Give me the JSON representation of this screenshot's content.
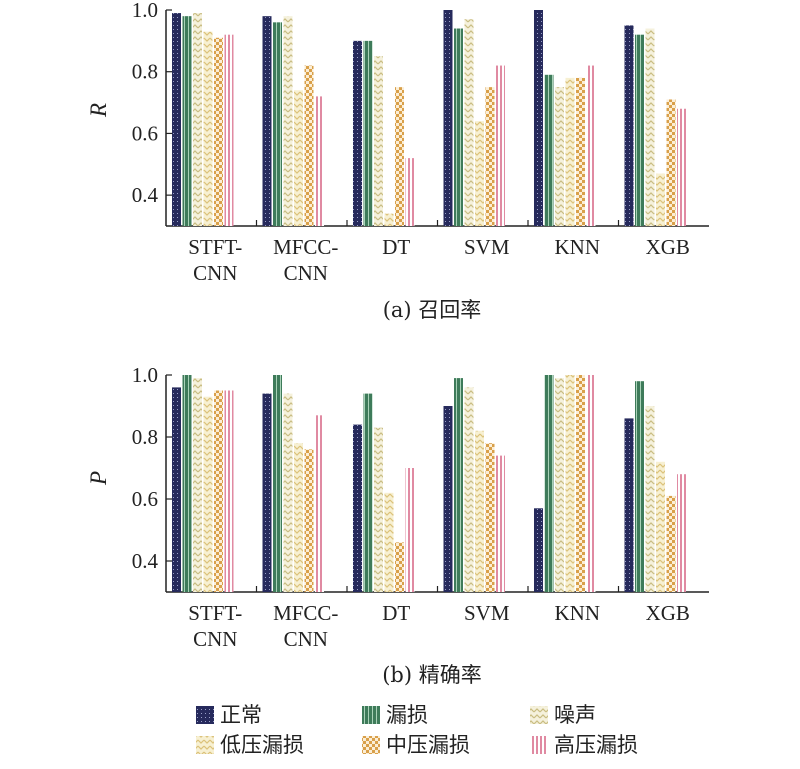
{
  "chart_data": [
    {
      "type": "bar",
      "caption": "(a) 召回率",
      "ylabel": "R",
      "ylim": [
        0.3,
        1.0
      ],
      "yticks": [
        "0.4",
        "0.6",
        "0.8",
        "1.0"
      ],
      "categories": [
        "STFT-CNN",
        "MFCC-CNN",
        "DT",
        "SVM",
        "KNN",
        "XGB"
      ],
      "category_lines": [
        [
          "STFT-",
          "CNN"
        ],
        [
          "MFCC-",
          "CNN"
        ],
        [
          "DT"
        ],
        [
          "SVM"
        ],
        [
          "KNN"
        ],
        [
          "XGB"
        ]
      ],
      "series": [
        {
          "name": "正常",
          "values": [
            0.99,
            0.98,
            0.9,
            1.0,
            1.0,
            0.95
          ]
        },
        {
          "name": "漏损",
          "values": [
            0.98,
            0.96,
            0.9,
            0.94,
            0.79,
            0.92
          ]
        },
        {
          "name": "噪声",
          "values": [
            0.99,
            0.98,
            0.85,
            0.97,
            0.75,
            0.94
          ]
        },
        {
          "name": "低压漏损",
          "values": [
            0.93,
            0.74,
            0.34,
            0.64,
            0.78,
            0.47
          ]
        },
        {
          "name": "中压漏损",
          "values": [
            0.91,
            0.82,
            0.75,
            0.75,
            0.78,
            0.71
          ]
        },
        {
          "name": "高压漏损",
          "values": [
            0.92,
            0.72,
            0.52,
            0.82,
            0.82,
            0.68
          ]
        }
      ]
    },
    {
      "type": "bar",
      "caption": "(b) 精确率",
      "ylabel": "P",
      "ylim": [
        0.3,
        1.0
      ],
      "yticks": [
        "0.4",
        "0.6",
        "0.8",
        "1.0"
      ],
      "categories": [
        "STFT-CNN",
        "MFCC-CNN",
        "DT",
        "SVM",
        "KNN",
        "XGB"
      ],
      "category_lines": [
        [
          "STFT-",
          "CNN"
        ],
        [
          "MFCC-",
          "CNN"
        ],
        [
          "DT"
        ],
        [
          "SVM"
        ],
        [
          "KNN"
        ],
        [
          "XGB"
        ]
      ],
      "series": [
        {
          "name": "正常",
          "values": [
            0.96,
            0.94,
            0.84,
            0.9,
            0.57,
            0.86
          ]
        },
        {
          "name": "漏损",
          "values": [
            1.0,
            1.0,
            0.94,
            0.99,
            1.0,
            0.98
          ]
        },
        {
          "name": "噪声",
          "values": [
            0.99,
            0.94,
            0.83,
            0.96,
            0.99,
            0.9
          ]
        },
        {
          "name": "低压漏损",
          "values": [
            0.93,
            0.78,
            0.62,
            0.82,
            1.0,
            0.72
          ]
        },
        {
          "name": "中压漏损",
          "values": [
            0.95,
            0.76,
            0.46,
            0.78,
            1.0,
            0.61
          ]
        },
        {
          "name": "高压漏损",
          "values": [
            0.95,
            0.87,
            0.7,
            0.74,
            1.0,
            0.68
          ]
        }
      ]
    }
  ],
  "legend": [
    {
      "name": "正常",
      "pattern": "dots-navy"
    },
    {
      "name": "漏损",
      "pattern": "stripes-green"
    },
    {
      "name": "噪声",
      "pattern": "zigzag-tan"
    },
    {
      "name": "低压漏损",
      "pattern": "chevron-tan"
    },
    {
      "name": "中压漏损",
      "pattern": "checker-orange"
    },
    {
      "name": "高压漏损",
      "pattern": "stripes-pink"
    }
  ],
  "colors": {
    "navy": "#262a5c",
    "green": "#3e7b5a",
    "tan": "#d8cc98",
    "orange": "#d9a04a",
    "pink": "#d87d97"
  }
}
